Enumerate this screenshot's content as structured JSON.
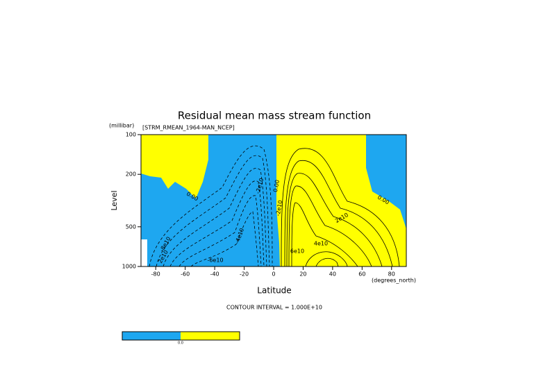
{
  "chart_data": {
    "type": "contour",
    "title": "Residual mean mass stream function",
    "subtitle": "[STRM_RMEAN_1964-MAN_NCEP]",
    "y_unit": "(millibar)",
    "ylabel": "Level",
    "xlabel": "Latitude",
    "x_unit": "(degrees_north)",
    "note": "CONTOUR INTERVAL = 1.000E+10",
    "xlim": [
      -90,
      90
    ],
    "xticks": [
      -80,
      -60,
      -40,
      -20,
      0,
      20,
      40,
      60,
      80
    ],
    "ylim": [
      1000,
      100
    ],
    "yticks": [
      100,
      200,
      500,
      1000
    ],
    "ylog": true,
    "negative_color": "#1ea7f0",
    "positive_color": "#ffff00",
    "contour_labels": [
      "0.00",
      "0.00",
      "0.00",
      "2e10",
      "4e10",
      "6e10",
      "-2e10",
      "-4e10",
      "-6e10",
      "-8e10",
      "-2e10",
      "2e10"
    ],
    "colorbar_label": "0.0"
  }
}
